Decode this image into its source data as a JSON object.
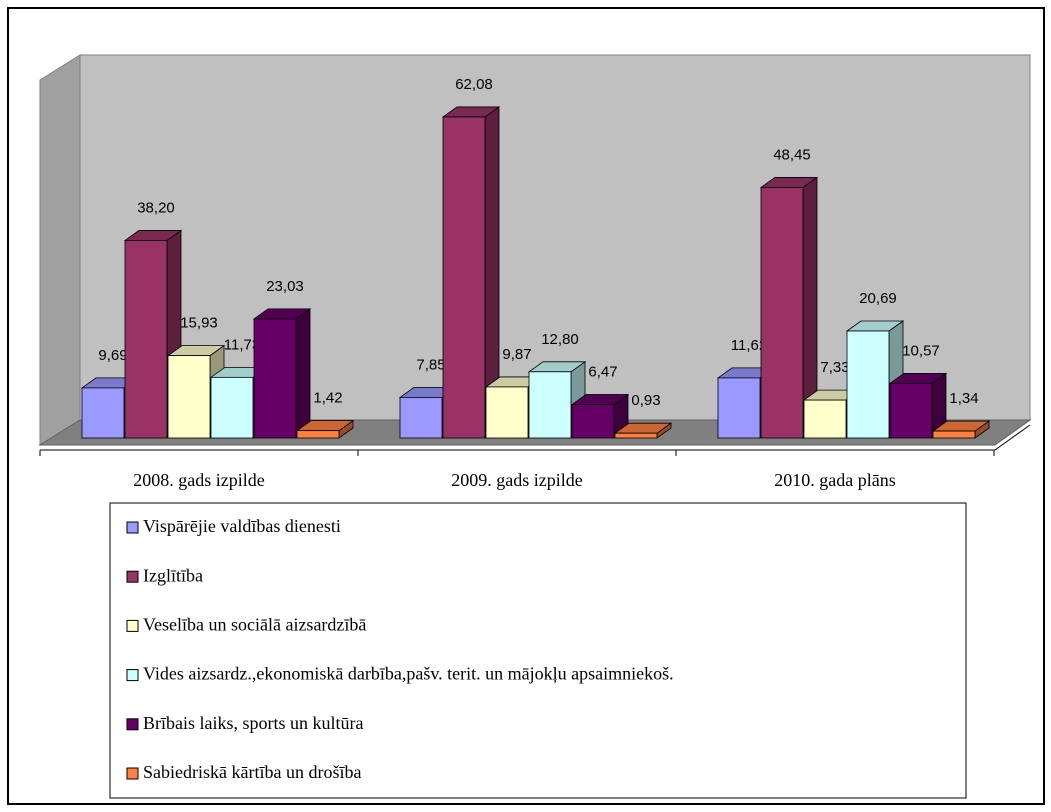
{
  "chart_data": {
    "type": "bar3d",
    "categories": [
      "2008. gads izpilde",
      "2009. gads izpilde",
      "2010. gada plāns"
    ],
    "series": [
      {
        "name": "Vispārējie valdības dienesti",
        "color": "#9999ff",
        "values": [
          9.69,
          7.85,
          11.62
        ],
        "value_labels": [
          "9,69",
          "7,85",
          "11,62"
        ]
      },
      {
        "name": "Izglītība",
        "color": "#993366",
        "values": [
          38.2,
          62.08,
          48.45
        ],
        "value_labels": [
          "38,20",
          "62,08",
          "48,45"
        ]
      },
      {
        "name": "Veselība un sociālā aizsardzībā",
        "color": "#ffffcc",
        "values": [
          15.93,
          9.87,
          7.33
        ],
        "value_labels": [
          "15,93",
          "9,87",
          "7,33"
        ]
      },
      {
        "name": "Vides aizsardz.,ekonomiskā darbība,pašv. terit. un mājokļu apsaimniekoš.",
        "color": "#ccffff",
        "values": [
          11.73,
          12.8,
          20.69
        ],
        "value_labels": [
          "11,73",
          "12,80",
          "20,69"
        ]
      },
      {
        "name": "Brībais laiks, sports un kultūra",
        "color": "#660066",
        "values": [
          23.03,
          6.47,
          10.57
        ],
        "value_labels": [
          "23,03",
          "6,47",
          "10,57"
        ]
      },
      {
        "name": "Sabiedriskā kārtība un drošība",
        "color": "#ff8040",
        "values": [
          1.42,
          0.93,
          1.34
        ],
        "value_labels": [
          "1,42",
          "0,93",
          "1,34"
        ]
      }
    ],
    "ylim": [
      0,
      70
    ]
  }
}
